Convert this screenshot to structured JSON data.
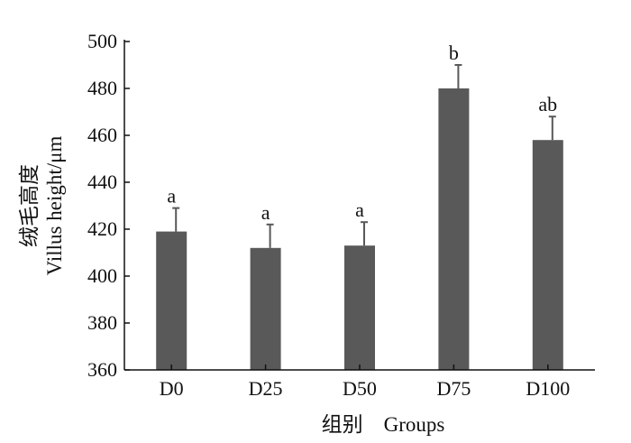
{
  "chart_data": {
    "type": "bar",
    "categories": [
      "D0",
      "D25",
      "D50",
      "D75",
      "D100"
    ],
    "values": [
      419,
      412,
      413,
      480,
      458
    ],
    "error": [
      10,
      10,
      10,
      10,
      10
    ],
    "significance": [
      "a",
      "a",
      "a",
      "b",
      "ab"
    ],
    "ylim": [
      360,
      500
    ],
    "yticks": [
      "360",
      "380",
      "400",
      "420",
      "440",
      "460",
      "480",
      "500"
    ],
    "ylabel_cn": "绒毛高度",
    "ylabel": "Villus height/μm",
    "xlabel": "组别　Groups",
    "bar_color": "#595959",
    "error_color": "#595959",
    "grid": false
  }
}
